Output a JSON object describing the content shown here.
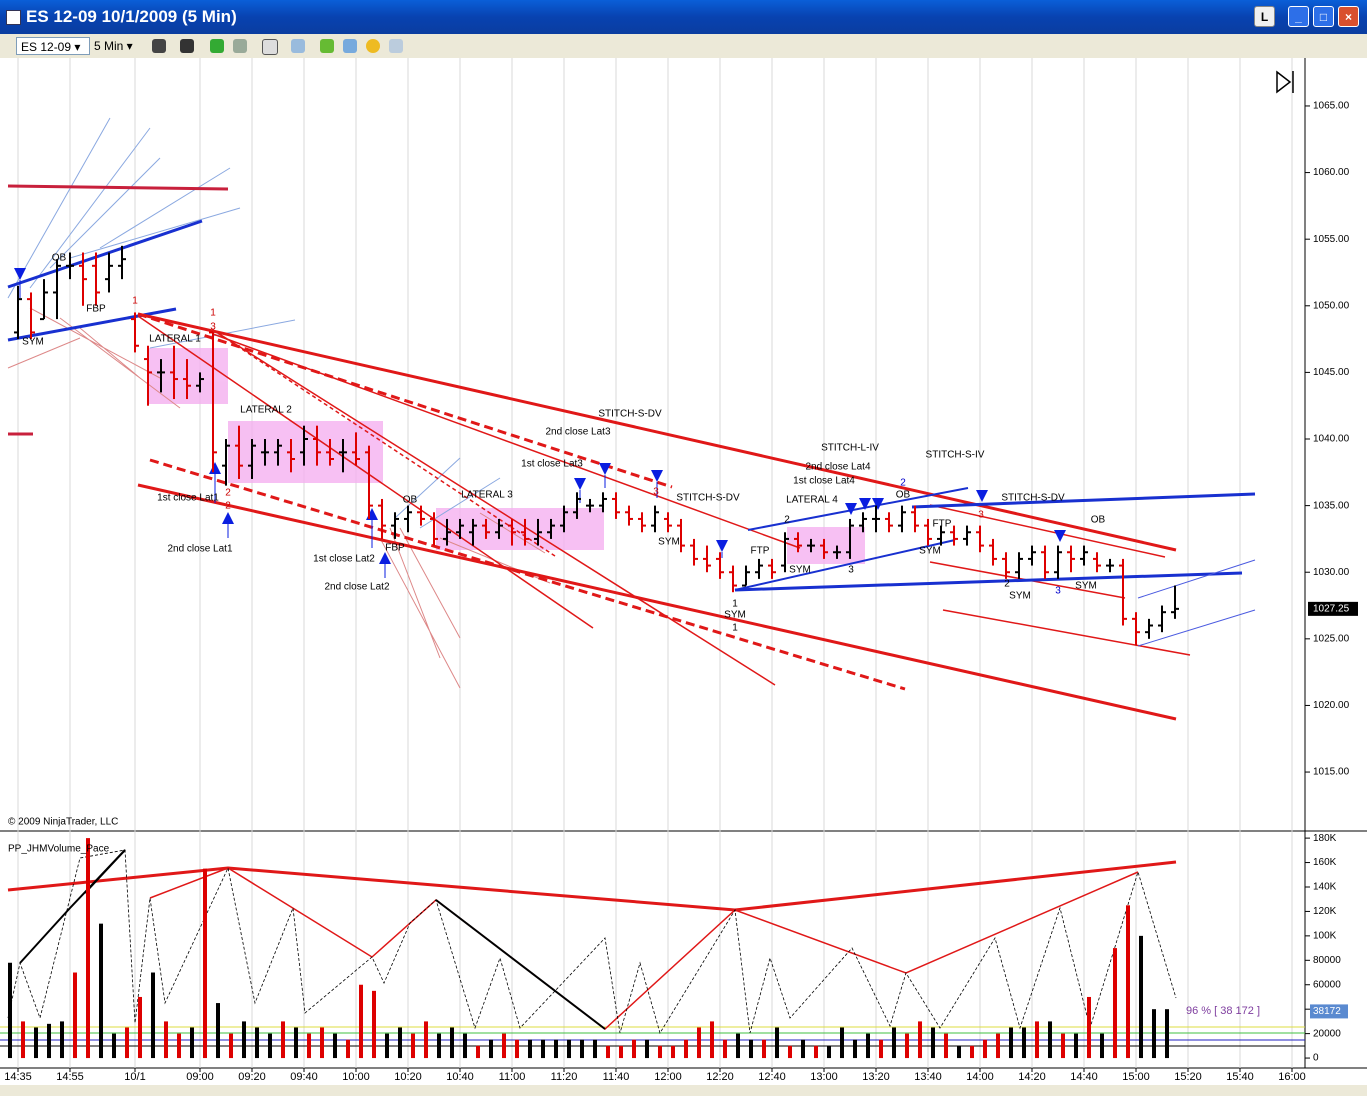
{
  "window": {
    "title": "ES 12-09  10/1/2009 (5 Min)",
    "button": "L"
  },
  "toolbar": {
    "instrument": "ES 12-09",
    "interval": "5 Min"
  },
  "chart_data": [
    {
      "type": "ohlc",
      "categories": [
        "14:35",
        null,
        null,
        null,
        "14:55",
        null,
        null,
        null,
        null,
        "10/1",
        null,
        null,
        null,
        null,
        "09:00",
        null,
        null,
        null,
        "09:20",
        null,
        null,
        null,
        "09:40",
        null,
        null,
        null,
        "10:00",
        null,
        null,
        null,
        "10:20",
        null,
        null,
        null,
        "10:40",
        null,
        null,
        null,
        "11:00",
        null,
        null,
        null,
        "11:20",
        null,
        null,
        null,
        "11:40",
        null,
        null,
        null,
        "12:00",
        null,
        null,
        null,
        "12:20",
        null,
        null,
        null,
        "12:40",
        null,
        null,
        null,
        "13:00",
        null,
        null,
        null,
        "13:20",
        null,
        null,
        null,
        "13:40",
        null,
        null,
        null,
        "14:00",
        null,
        null,
        null,
        "14:20",
        null,
        null,
        null,
        "14:40",
        null,
        null,
        null,
        "15:00",
        null,
        null,
        null,
        "15:20",
        null,
        null,
        null,
        "15:40",
        null,
        null,
        null,
        "16:00"
      ],
      "ohlc": [
        [
          1048,
          1051.5,
          1047.5,
          1050.5
        ],
        [
          1050.5,
          1051,
          1047.5,
          1048
        ],
        [
          1049,
          1052,
          1049,
          1051
        ],
        [
          1051,
          1053.5,
          1049,
          1053
        ],
        [
          1053,
          1054,
          1052,
          1053
        ],
        [
          1053,
          1054,
          1050,
          1052
        ],
        [
          1053,
          1054,
          1050,
          1051
        ],
        [
          1052,
          1054,
          1051,
          1053
        ],
        [
          1053,
          1054.5,
          1052,
          1053.5
        ],
        [
          1049,
          1049.5,
          1046.5,
          1047
        ],
        [
          1046,
          1047,
          1042.5,
          1045
        ],
        [
          1045,
          1046,
          1043.5,
          1045
        ],
        [
          1045,
          1047,
          1043,
          1044.5
        ],
        [
          1044.5,
          1046,
          1043,
          1044
        ],
        [
          1044,
          1045,
          1043.5,
          1044.5
        ],
        [
          1048,
          1048,
          1037.5,
          1039
        ],
        [
          1038,
          1040,
          1036.5,
          1039.5
        ],
        [
          1039.5,
          1041,
          1037,
          1038
        ],
        [
          1038,
          1040,
          1037,
          1039.5
        ],
        [
          1039,
          1040,
          1038,
          1039
        ],
        [
          1039,
          1040,
          1038,
          1039.5
        ],
        [
          1039,
          1040,
          1037.5,
          1038.5
        ],
        [
          1039,
          1041,
          1038,
          1040
        ],
        [
          1040,
          1041,
          1038,
          1039
        ],
        [
          1039,
          1040,
          1038,
          1038.5
        ],
        [
          1039,
          1040,
          1037.5,
          1039
        ],
        [
          1039,
          1040.5,
          1038,
          1038.5
        ],
        [
          1039,
          1039.5,
          1034,
          1035
        ],
        [
          1035,
          1035.5,
          1032.5,
          1033.5
        ],
        [
          1033.5,
          1034.5,
          1032.5,
          1034
        ],
        [
          1034,
          1035,
          1033,
          1034.5
        ],
        [
          1034.5,
          1035,
          1033.5,
          1034
        ],
        [
          1034,
          1034.5,
          1032,
          1032.5
        ],
        [
          1032.5,
          1034,
          1032,
          1033
        ],
        [
          1033,
          1034,
          1032.5,
          1033.5
        ],
        [
          1033,
          1034,
          1032,
          1033.5
        ],
        [
          1033.5,
          1034,
          1032.5,
          1033
        ],
        [
          1033,
          1034,
          1032.5,
          1033.5
        ],
        [
          1033.5,
          1034,
          1032,
          1033
        ],
        [
          1033,
          1034,
          1032,
          1032.5
        ],
        [
          1032.5,
          1034,
          1032,
          1033
        ],
        [
          1033,
          1034,
          1032.5,
          1033.5
        ],
        [
          1033.5,
          1035,
          1033,
          1034.5
        ],
        [
          1034.5,
          1036,
          1034,
          1035.5
        ],
        [
          1035,
          1035.5,
          1034.5,
          1035
        ],
        [
          1035,
          1036,
          1034.5,
          1035.5
        ],
        [
          1035.5,
          1036,
          1034,
          1034.5
        ],
        [
          1034.5,
          1035,
          1033.5,
          1034
        ],
        [
          1034,
          1034.5,
          1033,
          1033.5
        ],
        [
          1033.5,
          1035,
          1033,
          1034.5
        ],
        [
          1034,
          1034.5,
          1033,
          1033.5
        ],
        [
          1033.5,
          1034,
          1031.5,
          1032
        ],
        [
          1032,
          1032.5,
          1030.5,
          1031
        ],
        [
          1031,
          1032,
          1030,
          1030.5
        ],
        [
          1031,
          1031.5,
          1029.5,
          1030
        ],
        [
          1030,
          1030.5,
          1028.5,
          1029
        ],
        [
          1029,
          1030.5,
          1029,
          1030
        ],
        [
          1030,
          1031,
          1029.5,
          1030.5
        ],
        [
          1030.5,
          1031,
          1029.5,
          1030
        ],
        [
          1030.5,
          1033,
          1030,
          1032.5
        ],
        [
          1032.5,
          1033,
          1031.5,
          1032
        ],
        [
          1032,
          1032.5,
          1031.5,
          1032
        ],
        [
          1032,
          1032.5,
          1031,
          1031.5
        ],
        [
          1031.5,
          1032,
          1031,
          1031.5
        ],
        [
          1031.5,
          1034,
          1031,
          1033.5
        ],
        [
          1033.5,
          1034.5,
          1033,
          1034
        ],
        [
          1034,
          1035,
          1033,
          1034
        ],
        [
          1034,
          1034.5,
          1033,
          1033.5
        ],
        [
          1033.5,
          1035,
          1033,
          1034.5
        ],
        [
          1034.5,
          1035,
          1033,
          1033.5
        ],
        [
          1033.5,
          1034,
          1032,
          1032.5
        ],
        [
          1032.5,
          1033.5,
          1032,
          1033
        ],
        [
          1033,
          1033.5,
          1032,
          1032.5
        ],
        [
          1032.5,
          1033.5,
          1032,
          1033
        ],
        [
          1033,
          1033.5,
          1031.5,
          1032
        ],
        [
          1032,
          1032.5,
          1030.5,
          1031
        ],
        [
          1031,
          1031.5,
          1029.5,
          1030
        ],
        [
          1030,
          1031.5,
          1029.5,
          1031
        ],
        [
          1031,
          1032,
          1030.5,
          1031.5
        ],
        [
          1031.5,
          1032,
          1029.5,
          1030
        ],
        [
          1030,
          1032,
          1029.5,
          1031.5
        ],
        [
          1031.5,
          1032,
          1030,
          1031
        ],
        [
          1031,
          1032,
          1030.5,
          1031.5
        ],
        [
          1031,
          1031.5,
          1030,
          1030.5
        ],
        [
          1030.5,
          1031,
          1030,
          1030.5
        ],
        [
          1030.5,
          1031,
          1026,
          1026.5
        ],
        [
          1026.5,
          1027,
          1024.5,
          1025.5
        ],
        [
          1025.5,
          1026.5,
          1025,
          1026
        ],
        [
          1026,
          1027.5,
          1025.5,
          1027
        ],
        [
          1027,
          1029,
          1026.5,
          1027.25
        ],
        null,
        null,
        null,
        null,
        null,
        null,
        null,
        null,
        null
      ],
      "ylim": [
        1010.65,
        1068.3
      ],
      "yticks": [
        {
          "value": 1015,
          "label": "1015.00"
        },
        {
          "value": 1020,
          "label": "1020.00"
        },
        {
          "value": 1025,
          "label": "1025.00"
        },
        {
          "value": 1030,
          "label": "1030.00"
        },
        {
          "value": 1035,
          "label": "1035.00"
        },
        {
          "value": 1040,
          "label": "1040.00"
        },
        {
          "value": 1045,
          "label": "1045.00"
        },
        {
          "value": 1050,
          "label": "1050.00"
        },
        {
          "value": 1055,
          "label": "1055.00"
        },
        {
          "value": 1060,
          "label": "1060.00"
        },
        {
          "value": 1065,
          "label": "1065.00"
        }
      ],
      "last_price": 1027.25,
      "up_color": "#000000",
      "down_color": "#dd0000",
      "copyright": "© 2009 NinjaTrader, LLC",
      "annotations": [
        {
          "text": "SYM",
          "color": "#000000"
        },
        {
          "text": "OB",
          "color": "#000000"
        },
        {
          "text": "FBP",
          "color": "#000000"
        },
        {
          "text": "1",
          "color": "#cc0000"
        },
        {
          "text": "1",
          "color": "#cc0000"
        },
        {
          "text": "3",
          "color": "#cc0000"
        },
        {
          "text": "LATERAL 1",
          "color": "#000000"
        },
        {
          "text": "LATERAL 2",
          "color": "#000000"
        },
        {
          "text": "1st close Lat1",
          "color": "#000000"
        },
        {
          "text": "2",
          "color": "#cc0000"
        },
        {
          "text": "2",
          "color": "#cc0000"
        },
        {
          "text": "2nd close Lat1",
          "color": "#000000"
        },
        {
          "text": "OB",
          "color": "#000000"
        },
        {
          "text": "FBP",
          "color": "#000000"
        },
        {
          "text": "1st close Lat2",
          "color": "#000000"
        },
        {
          "text": "2nd close Lat2",
          "color": "#000000"
        },
        {
          "text": "LATERAL 3",
          "color": "#000000"
        },
        {
          "text": "2nd close Lat3",
          "color": "#000000"
        },
        {
          "text": "1st close Lat3",
          "color": "#000000"
        },
        {
          "text": "STITCH-S-DV",
          "color": "#000000"
        },
        {
          "text": "3",
          "color": "#cc0000"
        },
        {
          "text": "SYM",
          "color": "#000000"
        },
        {
          "text": "STITCH-S-DV",
          "color": "#000000"
        },
        {
          "text": "FTP",
          "color": "#000000"
        },
        {
          "text": "1",
          "color": "#000000"
        },
        {
          "text": "SYM",
          "color": "#000000"
        },
        {
          "text": "1",
          "color": "#000000"
        },
        {
          "text": "LATERAL 4",
          "color": "#000000"
        },
        {
          "text": "2",
          "color": "#000000"
        },
        {
          "text": "SYM",
          "color": "#000000"
        },
        {
          "text": "3",
          "color": "#000000"
        },
        {
          "text": "STITCH-L-IV",
          "color": "#000000"
        },
        {
          "text": "2nd close Lat4",
          "color": "#000000"
        },
        {
          "text": "1st close Lat4",
          "color": "#000000"
        },
        {
          "text": "2",
          "color": "#0000cc"
        },
        {
          "text": "OB",
          "color": "#000000"
        },
        {
          "text": "FTP",
          "color": "#000000"
        },
        {
          "text": "SYM",
          "color": "#000000"
        },
        {
          "text": "STITCH-S-IV",
          "color": "#000000"
        },
        {
          "text": "3",
          "color": "#cc0000"
        },
        {
          "text": "STITCH-S-DV",
          "color": "#000000"
        },
        {
          "text": "2",
          "color": "#000000"
        },
        {
          "text": "SYM",
          "color": "#000000"
        },
        {
          "text": "3",
          "color": "#0000cc"
        },
        {
          "text": "OB",
          "color": "#000000"
        },
        {
          "text": "SYM",
          "color": "#000000"
        }
      ]
    },
    {
      "type": "bar",
      "title": "PP_JHMVolume_Pace",
      "values": [
        78,
        30,
        25,
        28,
        30,
        70,
        180,
        110,
        20,
        25,
        50,
        70,
        30,
        20,
        25,
        155,
        45,
        20,
        30,
        25,
        20,
        30,
        25,
        20,
        25,
        20,
        15,
        60,
        55,
        20,
        25,
        20,
        30,
        20,
        25,
        20,
        10,
        15,
        20,
        15,
        15,
        15,
        15,
        15,
        15,
        15,
        10,
        10,
        15,
        15,
        10,
        10,
        15,
        25,
        30,
        15,
        20,
        15,
        15,
        25,
        10,
        15,
        10,
        10,
        25,
        15,
        20,
        15,
        25,
        20,
        30,
        25,
        20,
        10,
        10,
        15,
        20,
        25,
        25,
        30,
        30,
        20,
        20,
        50,
        20,
        90,
        125,
        100,
        40,
        40,
        null,
        null,
        null,
        null,
        null,
        null,
        null,
        null,
        null
      ],
      "ylim": [
        -6.5,
        185
      ],
      "yticks": [
        0,
        {
          "value": 20,
          "label": "20000"
        },
        {
          "value": 40,
          "label": "40000"
        },
        {
          "value": 60,
          "label": "60000"
        },
        {
          "value": 80,
          "label": "80000"
        },
        {
          "value": 100,
          "label": "100K"
        },
        {
          "value": 120,
          "label": "120K"
        },
        {
          "value": 140,
          "label": "140K"
        },
        {
          "value": 160,
          "label": "160K"
        },
        {
          "value": 180,
          "label": "180K"
        }
      ],
      "last_value": {
        "value": 38.172,
        "label": "38172"
      },
      "pace_label": "96 % [ 38 172 ]"
    }
  ]
}
